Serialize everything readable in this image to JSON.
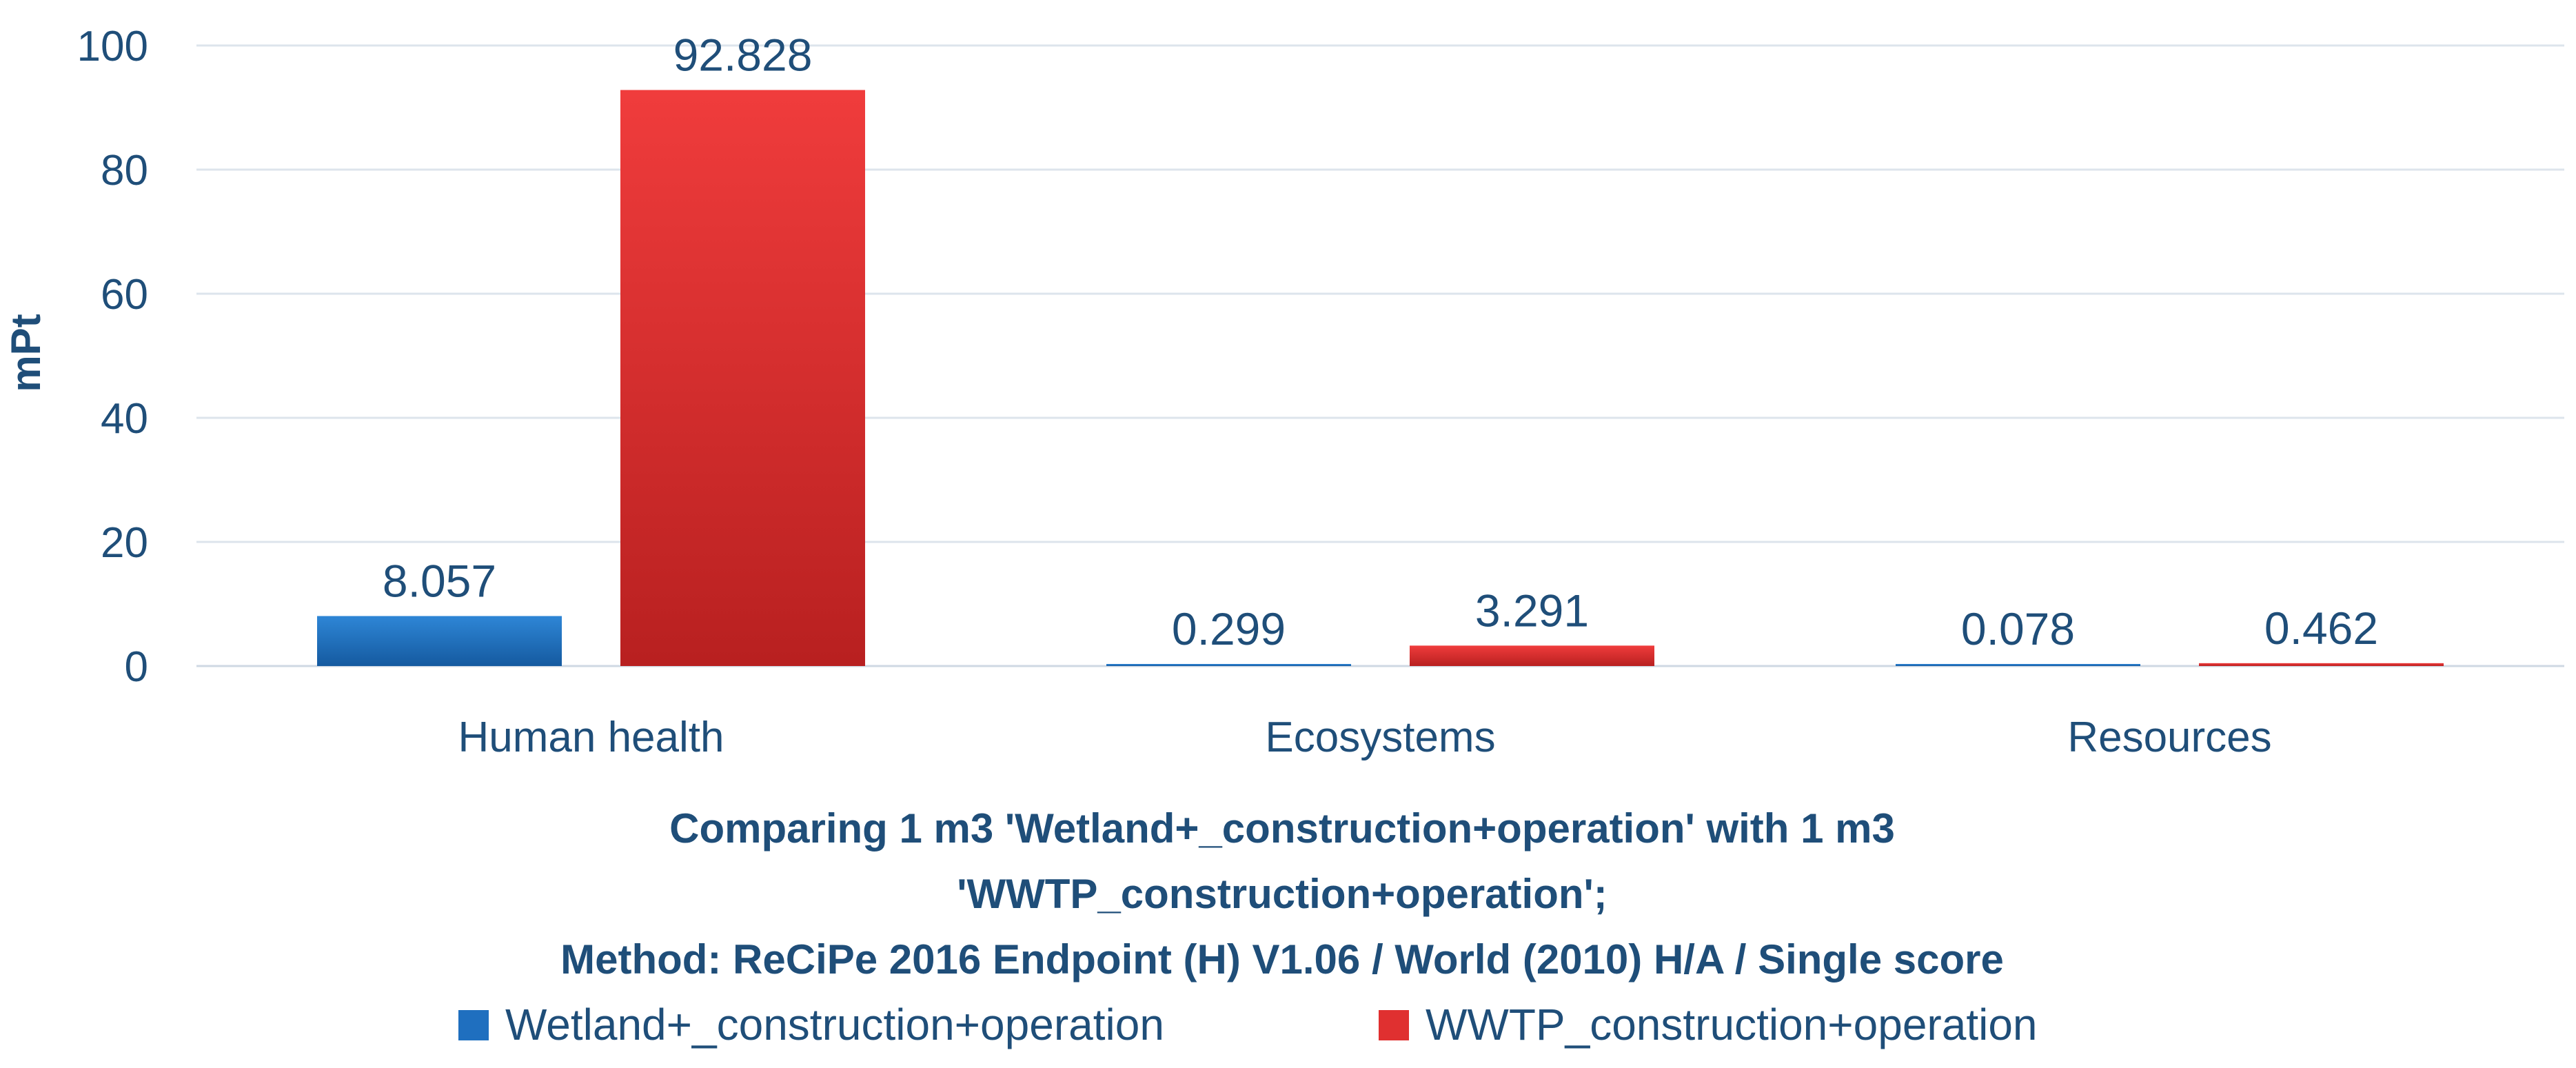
{
  "chart_data": {
    "type": "bar",
    "title_lines": [
      "Comparing 1 m3 'Wetland+_construction+operation' with 1 m3",
      "'WWTP_construction+operation';",
      "Method: ReCiPe 2016 Endpoint (H) V1.06 / World (2010) H/A / Single score"
    ],
    "xlabel": "",
    "ylabel": "mPt",
    "ylim": [
      0,
      100
    ],
    "yticks": [
      0,
      20,
      40,
      60,
      80,
      100
    ],
    "grid": true,
    "legend_position": "bottom",
    "categories": [
      "Human health",
      "Ecosystems",
      "Resources"
    ],
    "series": [
      {
        "name": "Wetland+_construction+operation",
        "color": "#1f6fbf",
        "values": [
          8.057,
          0.299,
          0.078
        ],
        "labels": [
          "8.057",
          "0.299",
          "0.078"
        ]
      },
      {
        "name": "WWTP_construction+operation",
        "color": "#e03030",
        "values": [
          92.828,
          3.291,
          0.462
        ],
        "labels": [
          "92.828",
          "3.291",
          "0.462"
        ]
      }
    ]
  }
}
